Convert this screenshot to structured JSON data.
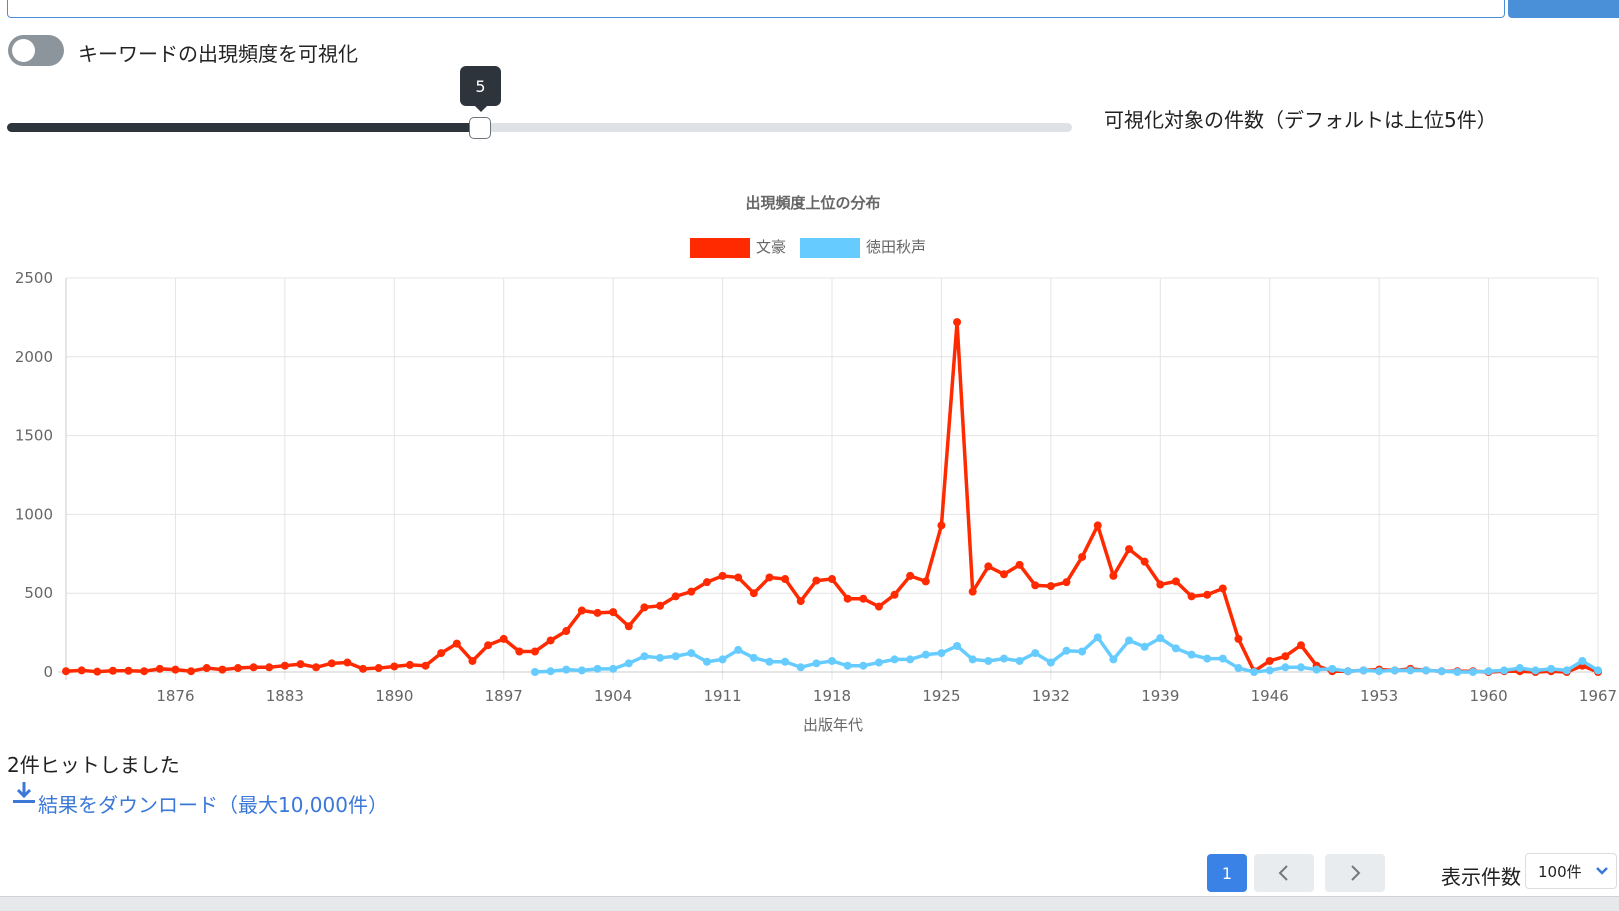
{
  "toggle_label": "キーワードの出現頻度を可視化",
  "slider": {
    "value": 5,
    "label": "可視化対象の件数（デフォルトは上位5件）"
  },
  "chart_data": {
    "type": "line",
    "title": "出現頻度上位の分布",
    "x_label": "出版年代",
    "x": [
      1869,
      1870,
      1871,
      1872,
      1873,
      1874,
      1875,
      1876,
      1877,
      1878,
      1879,
      1880,
      1881,
      1882,
      1883,
      1884,
      1885,
      1886,
      1887,
      1888,
      1889,
      1890,
      1891,
      1892,
      1893,
      1894,
      1895,
      1896,
      1897,
      1898,
      1899,
      1900,
      1901,
      1902,
      1903,
      1904,
      1905,
      1906,
      1907,
      1908,
      1909,
      1910,
      1911,
      1912,
      1913,
      1914,
      1915,
      1916,
      1917,
      1918,
      1919,
      1920,
      1921,
      1922,
      1923,
      1924,
      1925,
      1926,
      1927,
      1928,
      1929,
      1930,
      1931,
      1932,
      1933,
      1934,
      1935,
      1936,
      1937,
      1938,
      1939,
      1940,
      1941,
      1942,
      1943,
      1944,
      1945,
      1946,
      1947,
      1948,
      1949,
      1950,
      1951,
      1952,
      1953,
      1954,
      1955,
      1956,
      1957,
      1958,
      1959,
      1960,
      1961,
      1962,
      1963,
      1964,
      1965,
      1966,
      1967
    ],
    "series": [
      {
        "name": "文豪",
        "color": "#ff2a00",
        "values": [
          5,
          10,
          2,
          8,
          8,
          5,
          20,
          15,
          5,
          25,
          15,
          25,
          30,
          30,
          40,
          50,
          30,
          55,
          60,
          20,
          25,
          35,
          45,
          40,
          120,
          180,
          70,
          170,
          210,
          130,
          130,
          200,
          260,
          390,
          375,
          380,
          290,
          410,
          420,
          480,
          510,
          570,
          610,
          600,
          500,
          600,
          590,
          450,
          580,
          590,
          465,
          465,
          415,
          490,
          610,
          575,
          930,
          2220,
          510,
          670,
          620,
          680,
          550,
          545,
          570,
          730,
          930,
          610,
          780,
          700,
          555,
          575,
          480,
          490,
          530,
          210,
          5,
          70,
          100,
          170,
          40,
          5,
          5,
          10,
          15,
          10,
          20,
          10,
          5,
          5,
          5,
          0,
          5,
          5,
          0,
          5,
          0,
          40,
          0
        ]
      },
      {
        "name": "徳田秋声",
        "color": "#66ccff",
        "values": [
          null,
          null,
          null,
          null,
          null,
          null,
          null,
          null,
          null,
          null,
          null,
          null,
          null,
          null,
          null,
          null,
          null,
          null,
          null,
          null,
          null,
          null,
          null,
          null,
          null,
          null,
          null,
          null,
          null,
          null,
          0,
          5,
          15,
          10,
          20,
          20,
          55,
          100,
          90,
          100,
          120,
          65,
          80,
          140,
          90,
          65,
          65,
          30,
          55,
          70,
          40,
          40,
          60,
          80,
          80,
          110,
          120,
          165,
          80,
          70,
          85,
          70,
          120,
          60,
          135,
          130,
          220,
          80,
          200,
          160,
          215,
          150,
          110,
          85,
          85,
          25,
          0,
          10,
          30,
          30,
          15,
          20,
          5,
          10,
          5,
          10,
          10,
          10,
          5,
          0,
          0,
          5,
          10,
          25,
          10,
          20,
          10,
          70,
          10
        ]
      }
    ],
    "xlim": [
      1869,
      1967
    ],
    "xticks": [
      1876,
      1883,
      1890,
      1897,
      1904,
      1911,
      1918,
      1925,
      1932,
      1939,
      1946,
      1953,
      1960,
      1967
    ],
    "ylim": [
      0,
      2500
    ],
    "yticks": [
      0,
      500,
      1000,
      1500,
      2000,
      2500
    ],
    "grid": true,
    "legend": "top"
  },
  "results": {
    "count_text": "2件ヒットしました",
    "download": "結果をダウンロード（最大10,000件）"
  },
  "pagination": {
    "current": 1,
    "per_page_label": "表示件数",
    "per_page": "100件"
  }
}
